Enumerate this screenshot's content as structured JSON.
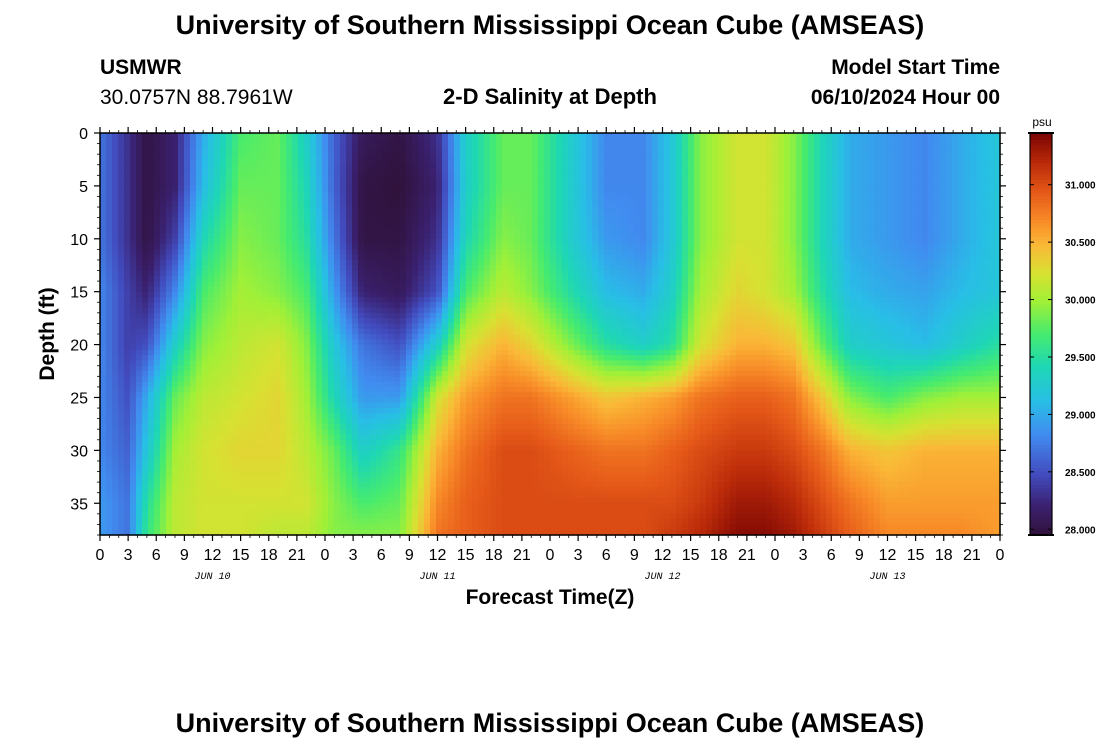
{
  "header": {
    "title": "University of Southern Mississippi Ocean Cube (AMSEAS)",
    "station_id": "USMWR",
    "coords": "30.0757N  88.7961W",
    "subtitle": "2-D Salinity at Depth",
    "model_start_label": "Model Start Time",
    "model_start_value": "06/10/2024 Hour 00"
  },
  "footer": {
    "title": "University of Southern Mississippi Ocean Cube (AMSEAS)"
  },
  "chart_data": {
    "type": "heatmap",
    "title": "2-D Salinity at Depth",
    "xlabel": "Forecast Time(Z)",
    "ylabel": "Depth (ft)",
    "x_range_hours": [
      0,
      96
    ],
    "y_range_ft": [
      0,
      38
    ],
    "x_tick_labels": [
      "0",
      "3",
      "6",
      "9",
      "12",
      "15",
      "18",
      "21",
      "0",
      "3",
      "6",
      "9",
      "12",
      "15",
      "18",
      "21",
      "0",
      "3",
      "6",
      "9",
      "12",
      "15",
      "18",
      "21",
      "0",
      "3",
      "6",
      "9",
      "12",
      "15",
      "18",
      "21",
      "0"
    ],
    "x_tick_hours": [
      0,
      3,
      6,
      9,
      12,
      15,
      18,
      21,
      24,
      27,
      30,
      33,
      36,
      39,
      42,
      45,
      48,
      51,
      54,
      57,
      60,
      63,
      66,
      69,
      72,
      75,
      78,
      81,
      84,
      87,
      90,
      93,
      96
    ],
    "date_labels": [
      {
        "text": "JUN 10",
        "hour": 12
      },
      {
        "text": "JUN 11",
        "hour": 36
      },
      {
        "text": "JUN 12",
        "hour": 60
      },
      {
        "text": "JUN 13",
        "hour": 84
      }
    ],
    "y_ticks": [
      0,
      5,
      10,
      15,
      20,
      25,
      30,
      35
    ],
    "colorbar": {
      "unit": "psu",
      "min": 27.95,
      "max": 31.45,
      "ticks": [
        28.0,
        28.5,
        29.0,
        29.5,
        30.0,
        30.5,
        31.0
      ],
      "tick_labels": [
        "28.000",
        "28.500",
        "29.000",
        "29.500",
        "30.000",
        "30.500",
        "31.000"
      ]
    },
    "grid": false,
    "depth_levels_ft": [
      0,
      5,
      10,
      15,
      20,
      25,
      30,
      35,
      38
    ],
    "profiles": [
      {
        "hour": 0,
        "salinity": [
          28.7,
          28.7,
          28.7,
          28.8,
          28.8,
          28.8,
          28.8,
          28.9,
          28.9
        ]
      },
      {
        "hour": 3,
        "salinity": [
          28.3,
          28.3,
          28.3,
          28.4,
          28.4,
          28.5,
          28.6,
          28.7,
          28.7
        ]
      },
      {
        "hour": 5,
        "salinity": [
          28.0,
          28.0,
          28.0,
          28.2,
          28.5,
          29.0,
          29.2,
          29.5,
          29.6
        ]
      },
      {
        "hour": 8,
        "salinity": [
          28.2,
          28.2,
          28.4,
          28.8,
          29.3,
          29.8,
          30.0,
          30.1,
          30.1
        ]
      },
      {
        "hour": 11,
        "salinity": [
          29.0,
          29.1,
          29.4,
          29.7,
          29.9,
          30.1,
          30.2,
          30.2,
          30.2
        ]
      },
      {
        "hour": 15,
        "salinity": [
          29.7,
          29.8,
          29.9,
          30.0,
          30.1,
          30.2,
          30.3,
          30.2,
          30.2
        ]
      },
      {
        "hour": 19,
        "salinity": [
          29.8,
          29.8,
          29.8,
          29.9,
          30.2,
          30.3,
          30.3,
          30.2,
          30.1
        ]
      },
      {
        "hour": 22,
        "salinity": [
          29.3,
          29.4,
          29.5,
          29.7,
          29.9,
          30.0,
          30.1,
          30.2,
          30.1
        ]
      },
      {
        "hour": 25,
        "salinity": [
          28.6,
          28.6,
          28.7,
          28.9,
          29.2,
          29.4,
          29.8,
          29.9,
          29.9
        ]
      },
      {
        "hour": 28,
        "salinity": [
          28.1,
          28.0,
          28.0,
          28.2,
          28.7,
          28.9,
          29.3,
          29.7,
          29.9
        ]
      },
      {
        "hour": 32,
        "salinity": [
          28.0,
          27.95,
          28.0,
          28.1,
          28.5,
          28.9,
          29.6,
          29.8,
          29.9
        ]
      },
      {
        "hour": 36,
        "salinity": [
          28.3,
          28.2,
          28.3,
          28.5,
          29.3,
          30.2,
          30.5,
          30.7,
          30.8
        ]
      },
      {
        "hour": 39,
        "salinity": [
          29.3,
          29.3,
          29.4,
          29.7,
          30.2,
          30.6,
          30.8,
          30.9,
          30.9
        ]
      },
      {
        "hour": 43,
        "salinity": [
          29.8,
          29.8,
          29.9,
          30.1,
          30.5,
          30.8,
          31.0,
          31.0,
          31.0
        ]
      },
      {
        "hour": 46,
        "salinity": [
          29.8,
          29.8,
          29.8,
          29.9,
          30.3,
          30.8,
          31.0,
          31.0,
          31.0
        ]
      },
      {
        "hour": 50,
        "salinity": [
          29.3,
          29.3,
          29.3,
          29.5,
          29.9,
          30.6,
          30.9,
          31.0,
          31.0
        ]
      },
      {
        "hour": 54,
        "salinity": [
          28.8,
          28.8,
          28.9,
          29.1,
          29.5,
          30.4,
          30.8,
          31.0,
          31.0
        ]
      },
      {
        "hour": 58,
        "salinity": [
          28.8,
          28.8,
          28.8,
          29.0,
          29.3,
          30.5,
          30.8,
          31.0,
          31.0
        ]
      },
      {
        "hour": 61,
        "salinity": [
          29.2,
          29.2,
          29.2,
          29.3,
          29.5,
          30.6,
          30.9,
          31.0,
          31.1
        ]
      },
      {
        "hour": 64,
        "salinity": [
          29.9,
          29.9,
          29.9,
          30.0,
          30.2,
          30.8,
          31.0,
          31.1,
          31.2
        ]
      },
      {
        "hour": 68,
        "salinity": [
          30.2,
          30.2,
          30.2,
          30.3,
          30.5,
          30.9,
          31.1,
          31.3,
          31.4
        ]
      },
      {
        "hour": 71,
        "salinity": [
          30.2,
          30.2,
          30.2,
          30.2,
          30.5,
          30.9,
          31.1,
          31.3,
          31.4
        ]
      },
      {
        "hour": 74,
        "salinity": [
          29.9,
          29.9,
          29.9,
          30.0,
          30.4,
          30.8,
          31.0,
          31.2,
          31.3
        ]
      },
      {
        "hour": 77,
        "salinity": [
          29.4,
          29.4,
          29.4,
          29.5,
          29.8,
          30.4,
          30.8,
          31.0,
          31.1
        ]
      },
      {
        "hour": 80,
        "salinity": [
          29.0,
          29.0,
          29.0,
          29.1,
          29.3,
          29.9,
          30.5,
          30.8,
          30.9
        ]
      },
      {
        "hour": 84,
        "salinity": [
          28.9,
          28.9,
          28.9,
          29.0,
          29.2,
          29.7,
          30.4,
          30.6,
          30.7
        ]
      },
      {
        "hour": 88,
        "salinity": [
          28.8,
          28.8,
          28.8,
          28.95,
          29.1,
          29.9,
          30.5,
          30.6,
          30.7
        ]
      },
      {
        "hour": 92,
        "salinity": [
          29.0,
          29.0,
          29.0,
          29.1,
          29.3,
          30.0,
          30.5,
          30.6,
          30.7
        ]
      },
      {
        "hour": 96,
        "salinity": [
          29.2,
          29.2,
          29.2,
          29.2,
          29.5,
          30.0,
          30.5,
          30.6,
          30.6
        ]
      }
    ]
  }
}
